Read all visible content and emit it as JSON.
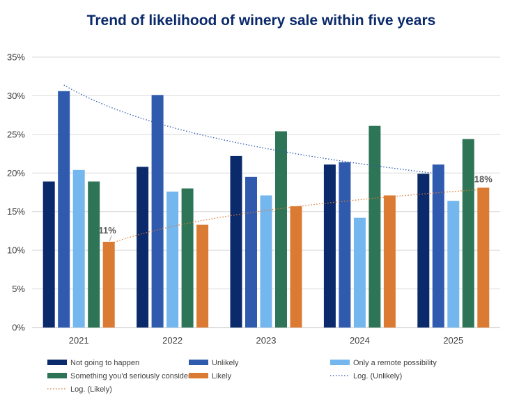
{
  "chart_data": {
    "type": "bar",
    "title": "Trend of likelihood of winery sale within five years",
    "xlabel": "",
    "ylabel": "",
    "categories": [
      "2021",
      "2022",
      "2023",
      "2024",
      "2025"
    ],
    "ylim": [
      0,
      35
    ],
    "yticks": [
      0,
      5,
      10,
      15,
      20,
      25,
      30,
      35
    ],
    "ytick_labels": [
      "0%",
      "5%",
      "10%",
      "15%",
      "20%",
      "25%",
      "30%",
      "35%"
    ],
    "grid": true,
    "legend_position": "bottom",
    "series": [
      {
        "name": "Not going to happen",
        "color": "#0b2a6b",
        "values": [
          18.9,
          20.8,
          22.2,
          21.1,
          19.9
        ]
      },
      {
        "name": "Unlikely",
        "color": "#2f5aae",
        "values": [
          30.6,
          30.1,
          19.5,
          21.4,
          21.1
        ]
      },
      {
        "name": "Only a remote possibility",
        "color": "#74b6ee",
        "values": [
          20.4,
          17.6,
          17.1,
          14.2,
          16.4
        ]
      },
      {
        "name": "Something you'd seriously consider",
        "color": "#2e7457",
        "values": [
          18.9,
          18.0,
          25.4,
          26.1,
          24.4
        ]
      },
      {
        "name": "Likely",
        "color": "#db7b33",
        "values": [
          11.1,
          13.3,
          15.7,
          17.1,
          18.1
        ]
      }
    ],
    "trendlines": [
      {
        "name": "Log. (Unlikely)",
        "series": "Unlikely",
        "type": "log",
        "color": "#2f5aae",
        "values": [
          31.4,
          26.8,
          23.6,
          21.5,
          19.9
        ]
      },
      {
        "name": "Log. (Likely)",
        "series": "Likely",
        "type": "log",
        "color": "#db7b33",
        "values": [
          10.8,
          13.8,
          15.6,
          16.9,
          17.9
        ]
      }
    ],
    "annotations": [
      {
        "text": "11%",
        "series": "Likely",
        "category": "2021"
      },
      {
        "text": "18%",
        "series": "Likely",
        "category": "2025"
      }
    ],
    "title_color": "#0b2a6b",
    "legend": [
      "Not going to happen",
      "Unlikely",
      "Only a remote possibility",
      "Something you'd seriously consider",
      "Likely",
      "Log. (Unlikely)",
      "Log. (Likely)"
    ]
  }
}
